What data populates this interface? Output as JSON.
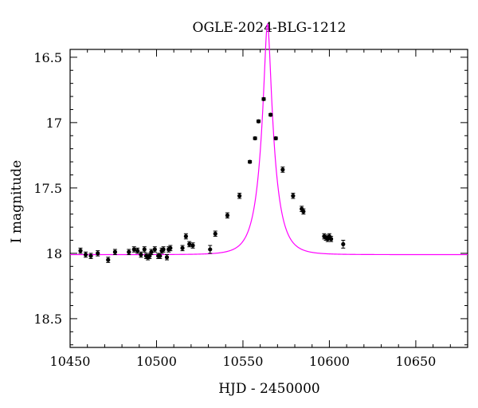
{
  "chart_data": {
    "type": "scatter",
    "title": "OGLE-2024-BLG-1212",
    "xlabel": "HJD - 2450000",
    "ylabel": "I magnitude",
    "xlim": [
      10450,
      10680
    ],
    "ylim": [
      18.72,
      16.44
    ],
    "y_inverted": true,
    "grid": false,
    "legend": "none",
    "xticks_major": [
      10450,
      10500,
      10550,
      10600,
      10650
    ],
    "xticks_labels": [
      "10450",
      "10500",
      "10550",
      "10600",
      "10650"
    ],
    "yticks_major": [
      16.5,
      17,
      17.5,
      18,
      18.5
    ],
    "yticks_labels": [
      "16.5",
      "17",
      "17.5",
      "18",
      "18.5"
    ],
    "colors": {
      "points": "#000000",
      "model": "#ff00ff"
    },
    "series": [
      {
        "type": "scatter",
        "x": [
          10456,
          10459,
          10462,
          10466,
          10472,
          10476,
          10484,
          10487,
          10489,
          10491,
          10493,
          10494,
          10495,
          10496,
          10497,
          10499,
          10501,
          10502,
          10503,
          10504,
          10506,
          10507,
          10508,
          10515,
          10517,
          10519,
          10521,
          10531,
          10534,
          10541,
          10548,
          10554,
          10557,
          10559,
          10562,
          10566,
          10569,
          10573,
          10579,
          10584,
          10585,
          10597,
          10598,
          10599,
          10600,
          10601,
          10608
        ],
        "y": [
          17.98,
          18.01,
          18.02,
          18.0,
          18.05,
          17.99,
          17.99,
          17.97,
          17.98,
          18.01,
          17.97,
          18.02,
          18.03,
          18.02,
          17.99,
          17.97,
          18.02,
          18.02,
          17.98,
          17.97,
          18.03,
          17.97,
          17.96,
          17.96,
          17.87,
          17.93,
          17.94,
          17.97,
          17.85,
          17.71,
          17.56,
          17.3,
          17.12,
          16.99,
          16.82,
          16.94,
          17.12,
          17.36,
          17.56,
          17.66,
          17.68,
          17.87,
          17.88,
          17.89,
          17.87,
          17.89,
          17.93
        ],
        "yerr": [
          0.02,
          0.02,
          0.02,
          0.02,
          0.02,
          0.02,
          0.02,
          0.02,
          0.02,
          0.02,
          0.02,
          0.02,
          0.02,
          0.02,
          0.02,
          0.02,
          0.02,
          0.02,
          0.02,
          0.02,
          0.02,
          0.02,
          0.02,
          0.02,
          0.02,
          0.02,
          0.02,
          0.03,
          0.02,
          0.02,
          0.02,
          0.01,
          0.01,
          0.01,
          0.01,
          0.01,
          0.01,
          0.02,
          0.02,
          0.02,
          0.02,
          0.02,
          0.02,
          0.02,
          0.02,
          0.02,
          0.03
        ]
      },
      {
        "type": "line",
        "model": "Paczynski",
        "t0": 10564.2,
        "u0": 0.2,
        "tE": 8.5,
        "I_base": 18.01
      }
    ]
  }
}
